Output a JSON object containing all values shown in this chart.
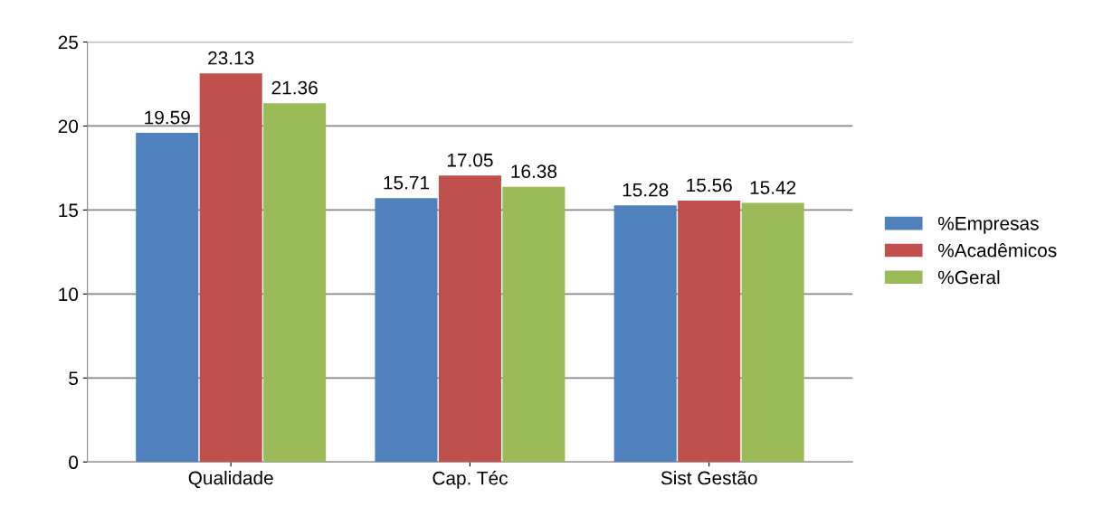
{
  "chart_data": {
    "type": "bar",
    "categories": [
      "Qualidade",
      "Cap. Téc",
      "Sist Gestão"
    ],
    "series": [
      {
        "name": "%Empresas",
        "color": "#4f81bd",
        "values": [
          19.59,
          15.71,
          15.28
        ]
      },
      {
        "name": "%Acadêmicos",
        "color": "#c0504d",
        "values": [
          23.13,
          17.05,
          15.56
        ]
      },
      {
        "name": "%Geral",
        "color": "#9bbb59",
        "values": [
          21.36,
          16.38,
          15.42
        ]
      }
    ],
    "ylim": [
      0,
      25
    ],
    "yticks": [
      0,
      5,
      10,
      15,
      20,
      25
    ],
    "grid": "y",
    "legend": "right",
    "data_labels": true
  }
}
